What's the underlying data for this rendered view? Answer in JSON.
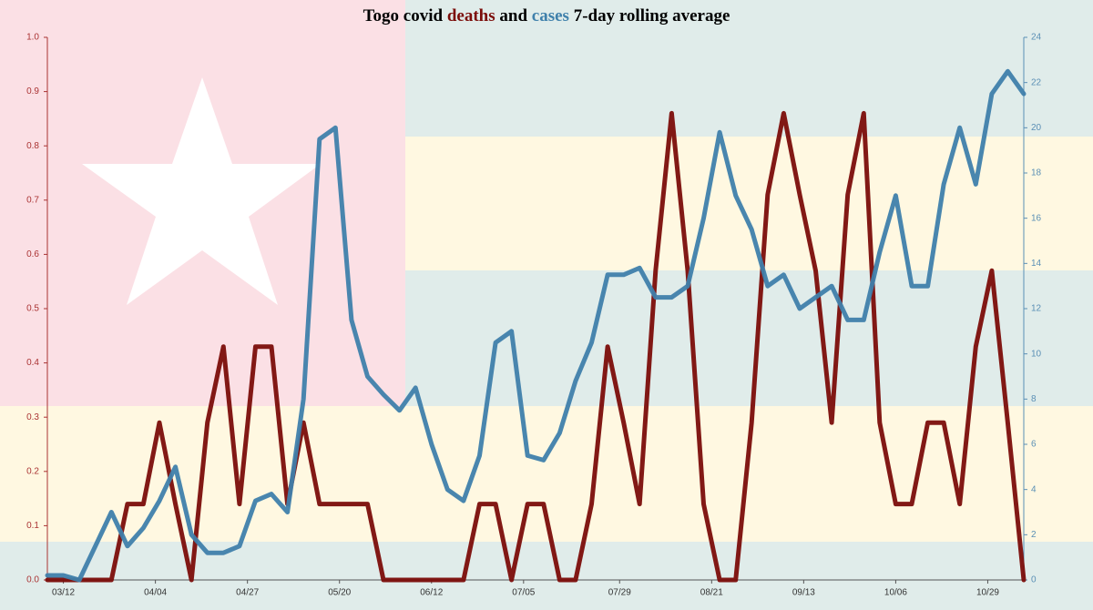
{
  "chart_data": {
    "type": "line",
    "title_parts": [
      "Togo covid",
      "deaths",
      "and",
      "cases",
      "7-day rolling average"
    ],
    "x": [
      "03/08",
      "03/12",
      "03/16",
      "03/20",
      "03/24",
      "03/28",
      "04/01",
      "04/05",
      "04/09",
      "04/13",
      "04/17",
      "04/21",
      "04/25",
      "04/29",
      "05/03",
      "05/07",
      "05/11",
      "05/15",
      "05/19",
      "05/23",
      "05/27",
      "05/31",
      "06/04",
      "06/08",
      "06/12",
      "06/16",
      "06/20",
      "06/24",
      "06/28",
      "07/02",
      "07/06",
      "07/10",
      "07/14",
      "07/18",
      "07/22",
      "07/26",
      "07/30",
      "08/03",
      "08/07",
      "08/11",
      "08/15",
      "08/19",
      "08/23",
      "08/27",
      "08/31",
      "09/04",
      "09/08",
      "09/12",
      "09/16",
      "09/20",
      "09/24",
      "09/28",
      "10/02",
      "10/06",
      "10/10",
      "10/14",
      "10/18",
      "10/22",
      "10/26",
      "10/30",
      "11/03",
      "11/07"
    ],
    "xticks": [
      "03/12",
      "04/04",
      "04/27",
      "05/20",
      "06/12",
      "07/05",
      "07/29",
      "08/21",
      "09/13",
      "10/06",
      "10/29"
    ],
    "series": [
      {
        "name": "deaths",
        "color": "#7b0d0a",
        "axis": "y",
        "values": [
          0,
          0,
          0,
          0,
          0,
          0.14,
          0.14,
          0.29,
          0.14,
          0,
          0.29,
          0.43,
          0.14,
          0.43,
          0.43,
          0.14,
          0.29,
          0.14,
          0.14,
          0.14,
          0.14,
          0,
          0,
          0,
          0,
          0,
          0,
          0.14,
          0.14,
          0,
          0.14,
          0.14,
          0,
          0,
          0.14,
          0.43,
          0.29,
          0.14,
          0.57,
          0.86,
          0.57,
          0.14,
          0,
          0,
          0.29,
          0.71,
          0.86,
          0.71,
          0.57,
          0.29,
          0.71,
          0.86,
          0.29,
          0.14,
          0.14,
          0.29,
          0.29,
          0.14,
          0.43,
          0.57,
          0.29,
          0
        ]
      },
      {
        "name": "cases",
        "color": "#3f80ab",
        "axis": "y2",
        "values": [
          0.2,
          0.2,
          0,
          1.5,
          3,
          1.5,
          2.3,
          3.5,
          5,
          2,
          1.2,
          1.2,
          1.5,
          3.5,
          3.8,
          3,
          8,
          19.5,
          20,
          11.5,
          9,
          8.2,
          7.5,
          8.5,
          6,
          4,
          3.5,
          5.5,
          10.5,
          11,
          5.5,
          5.3,
          6.5,
          8.8,
          10.5,
          13.5,
          13.5,
          13.8,
          12.5,
          12.5,
          13,
          16,
          19.8,
          17,
          15.5,
          13,
          13.5,
          12,
          12.5,
          13,
          11.5,
          11.5,
          14.5,
          17,
          13,
          13,
          17.5,
          20,
          17.5,
          21.5,
          22.5,
          21.5
        ]
      }
    ],
    "ylim": [
      0,
      1
    ],
    "yticks": [
      {
        "value": 0,
        "label": "0.0"
      },
      {
        "value": 0.1,
        "label": "0.1"
      },
      {
        "value": 0.2,
        "label": "0.2"
      },
      {
        "value": 0.3,
        "label": "0.3"
      },
      {
        "value": 0.4,
        "label": "0.4"
      },
      {
        "value": 0.5,
        "label": "0.5"
      },
      {
        "value": 0.6,
        "label": "0.6"
      },
      {
        "value": 0.7,
        "label": "0.7"
      },
      {
        "value": 0.8,
        "label": "0.8"
      },
      {
        "value": 0.9,
        "label": "0.9"
      },
      {
        "value": 1,
        "label": "1.0"
      }
    ],
    "y2lim": [
      0,
      24
    ],
    "y2ticks": [
      0,
      2,
      4,
      6,
      8,
      10,
      12,
      14,
      16,
      18,
      20,
      22,
      24
    ]
  }
}
